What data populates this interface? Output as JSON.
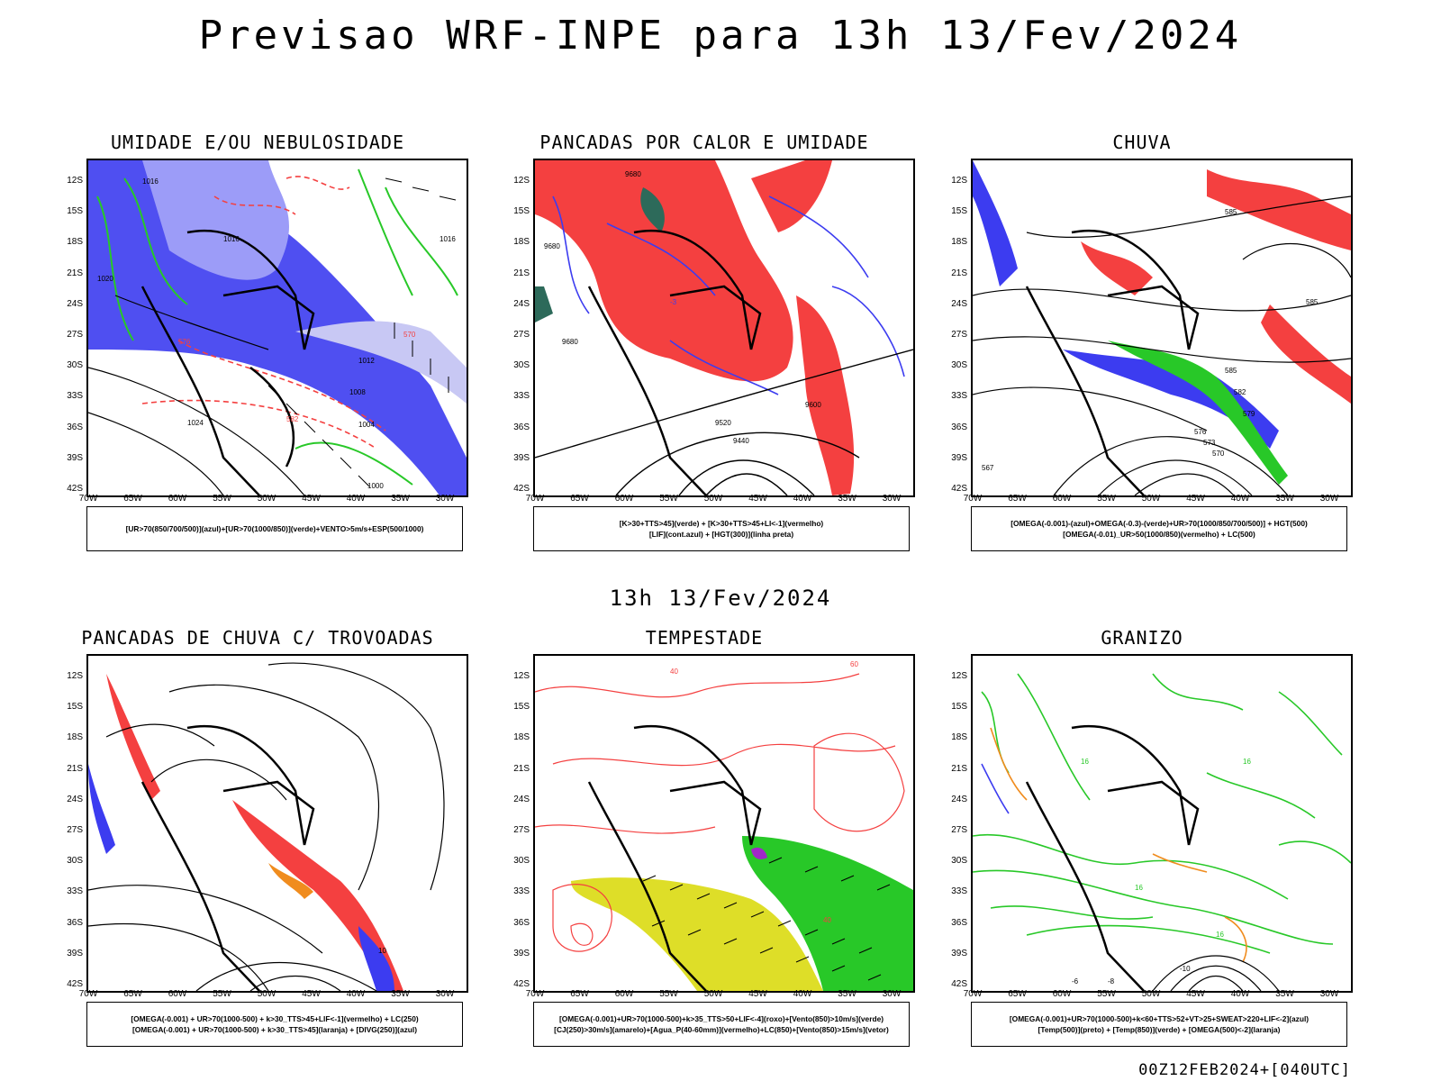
{
  "header": {
    "title": "Previsao WRF-INPE  para 13h 13/Fev/2024",
    "subtitle": "13h 13/Fev/2024",
    "run_code": "00Z12FEB2024+[040UTC]"
  },
  "axes": {
    "lat_ticks": [
      "12S",
      "15S",
      "18S",
      "21S",
      "24S",
      "27S",
      "30S",
      "33S",
      "36S",
      "39S",
      "42S"
    ],
    "lon_ticks": [
      "70W",
      "65W",
      "60W",
      "55W",
      "50W",
      "45W",
      "40W",
      "35W",
      "30W"
    ]
  },
  "panels": [
    {
      "id": "umidade",
      "title": "UMIDADE E/OU NEBULOSIDADE",
      "legend": [
        "[UR>70(850/700/500)](azul)+[UR>70(1000/850)](verde)+VENTO>5m/s+ESP(500/1000)"
      ],
      "contour_labels": [
        "1016",
        "1016",
        "1016",
        "1020",
        "1024",
        "1012",
        "1008",
        "1004",
        "1000",
        "570",
        "576",
        "582"
      ]
    },
    {
      "id": "pancadas-calor",
      "title": "PANCADAS POR CALOR E UMIDADE",
      "legend": [
        "[K>30+TTS>45](verde) + [K>30+TTS>45+LI<-1](vermelho)",
        "[LIF](cont.azul) + [HGT(300)](linha preta)"
      ],
      "contour_labels": [
        "9680",
        "9680",
        "9680",
        "9600",
        "9520",
        "9440",
        "-3"
      ]
    },
    {
      "id": "chuva",
      "title": "CHUVA",
      "legend": [
        "[OMEGA(-0.001)-(azul)+OMEGA(-0.3)-(verde)+UR>70(1000/850/700/500)] + HGT(500)",
        "[OMEGA(-0.01)_UR>50(1000/850)(vermelho) + LC(500)"
      ],
      "contour_labels": [
        "585",
        "585",
        "585",
        "582",
        "579",
        "576",
        "573",
        "570",
        "567"
      ]
    },
    {
      "id": "trovoadas",
      "title": "PANCADAS DE CHUVA C/ TROVOADAS",
      "legend": [
        "[OMEGA(-0.001) + UR>70(1000-500) + k>30_TTS>45+LIF<-1](vermelho) + LC(250)",
        "[OMEGA(-0.001) + UR>70(1000-500) + k>30_TTS>45](laranja) + [DIVG(250)](azul)"
      ],
      "contour_labels": [
        "10"
      ]
    },
    {
      "id": "tempestade",
      "title": "TEMPESTADE",
      "legend": [
        "[OMEGA(-0.001)+UR>70(1000-500)+k>35_TTS>50+LIF<-4](roxo)+[Vento(850)>10m/s](verde)",
        "[CJ(250)>30m/s](amarelo)+[Agua_P(40-60mm)](vermelho)+LC(850)+[Vento(850)>15m/s](vetor)"
      ],
      "contour_labels": [
        "40",
        "60",
        "40"
      ]
    },
    {
      "id": "granizo",
      "title": "GRANIZO",
      "legend": [
        "[OMEGA(-0.001)+UR>70(1000-500)+k<60+TTS>52+VT>25+SWEAT>220+LIF<-2](azul)",
        "[Temp(500)](preto) + [Temp(850)](verde) + [OMEGA(500)<-2](laranja)"
      ],
      "contour_labels": [
        "16",
        "16",
        "16",
        "16",
        "-6",
        "-8",
        "-10"
      ]
    }
  ],
  "colors": {
    "red": "#f44040",
    "blue": "#3c3cf0",
    "light_blue": "#9c9cf8",
    "pale_blue": "#c8c8f4",
    "green": "#28c828",
    "dark_teal": "#2d6a5a",
    "yellow": "#dede28",
    "orange": "#f08c1e",
    "purple": "#a028c8"
  }
}
